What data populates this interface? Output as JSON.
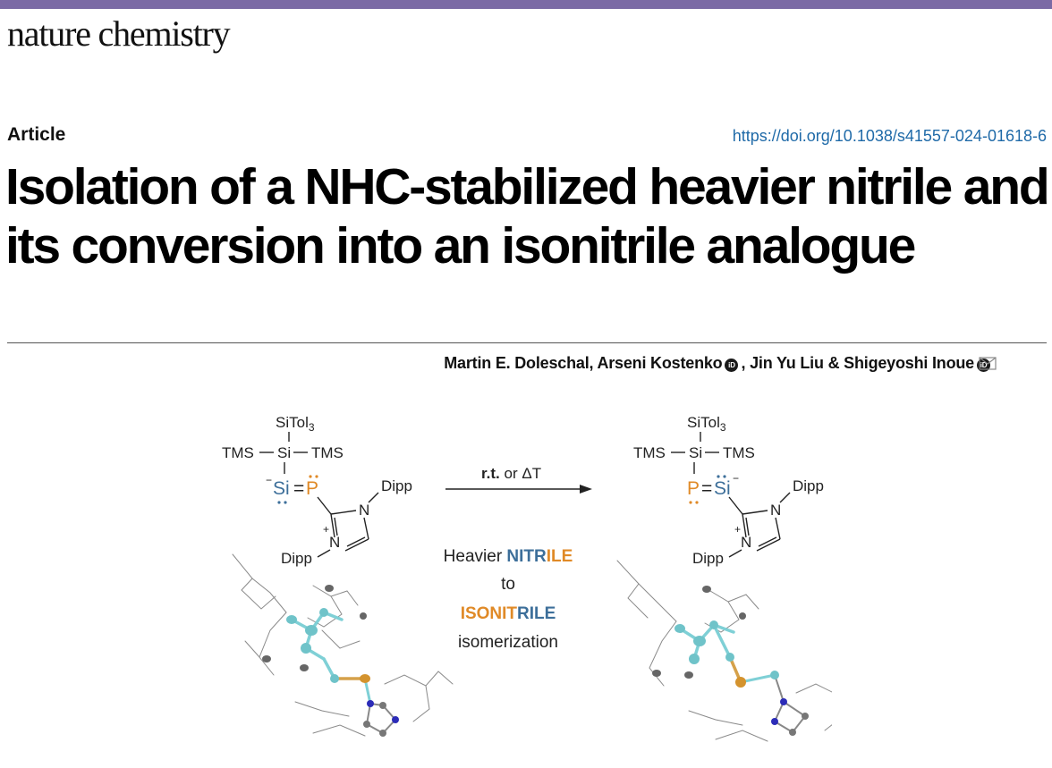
{
  "journal": {
    "name": "nature chemistry",
    "accent_color": "#7b6aa5"
  },
  "article": {
    "type": "Article",
    "doi": "https://doi.org/10.1038/s41557-024-01618-6",
    "title": "Isolation of a NHC-stabilized heavier nitrile and its conversion into an isonitrile analogue"
  },
  "authors": {
    "a1": "Martin E. Doleschal, ",
    "a2": "Arseni Kostenko",
    "a3": ", Jin Yu Liu & ",
    "a4": "Shigeyoshi Inoue",
    "orcid_glyph": "iD",
    "mail_icon": "envelope-icon"
  },
  "toc_figure": {
    "colors": {
      "silicon": "#3d6f9a",
      "phosphorus": "#e08a27",
      "carbon": "#7fd0d6"
    },
    "left_structure": {
      "silyl": "SiTol",
      "silyl_sub": "3",
      "tms_left": "TMS",
      "center_si": "Si",
      "tms_right": "TMS",
      "si": "Si",
      "eq": "=",
      "p": "P",
      "n_top": "N",
      "n_bottom": "N",
      "dipp_top": "Dipp",
      "dipp_bottom": "Dipp",
      "minus": "−",
      "plus": "+"
    },
    "right_structure": {
      "silyl": "SiTol",
      "silyl_sub": "3",
      "tms_left": "TMS",
      "center_si": "Si",
      "tms_right": "TMS",
      "p": "P",
      "eq": "=",
      "si": "Si",
      "n_top": "N",
      "n_bottom": "N",
      "dipp_top": "Dipp",
      "dipp_bottom": "Dipp",
      "minus": "−",
      "plus": "+"
    },
    "arrow": {
      "condition_bold": "r.t.",
      "condition_rest": " or ΔT"
    },
    "caption": {
      "line1_prefix": "Heavier ",
      "line1_blue": "NITR",
      "line1_orange": "ILE",
      "line2": "to",
      "line3_orange": "ISONIT",
      "line3_blue": "RILE",
      "line4": "isomerization"
    }
  }
}
